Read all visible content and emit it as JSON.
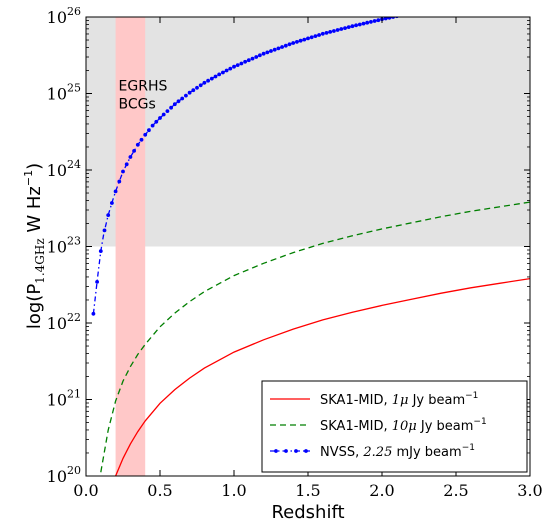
{
  "chart_data": {
    "type": "line",
    "x_label": "Redshift",
    "y_label": {
      "prefix": "log(P",
      "subscript": "1.4GHz",
      "unit": " W Hz",
      "unit_exponent": "−1",
      "suffix": ")"
    },
    "xlim": [
      0.0,
      3.0
    ],
    "ylim_log10": [
      20,
      26
    ],
    "y_scale": "log",
    "x_ticks": [
      {
        "value": 0.0,
        "label": "0.0"
      },
      {
        "value": 0.5,
        "label": "0.5"
      },
      {
        "value": 1.0,
        "label": "1.0"
      },
      {
        "value": 1.5,
        "label": "1.5"
      },
      {
        "value": 2.0,
        "label": "2.0"
      },
      {
        "value": 2.5,
        "label": "2.5"
      },
      {
        "value": 3.0,
        "label": "3.0"
      }
    ],
    "y_ticks": [
      {
        "exp": 20,
        "base": "10",
        "power": "20"
      },
      {
        "exp": 21,
        "base": "10",
        "power": "21"
      },
      {
        "exp": 22,
        "base": "10",
        "power": "22"
      },
      {
        "exp": 23,
        "base": "10",
        "power": "23"
      },
      {
        "exp": 24,
        "base": "10",
        "power": "24"
      },
      {
        "exp": 25,
        "base": "10",
        "power": "25"
      },
      {
        "exp": 26,
        "base": "10",
        "power": "26"
      }
    ],
    "shaded_regions": [
      {
        "kind": "horizontal",
        "y_log10_min": 23,
        "y_log10_max": 26,
        "color": "#e3e3e3"
      },
      {
        "kind": "vertical",
        "x_min": 0.2,
        "x_max": 0.4,
        "color": "#ffc8c8"
      }
    ],
    "annotation": {
      "lines": [
        "EGRHS",
        "BCGs"
      ],
      "x": 0.22,
      "y_log10": 25.0
    },
    "series": [
      {
        "name_prefix": "SKA1-MID, ",
        "name_math": "1μ",
        "name_suffix": " Jy beam",
        "name_exponent": "−1",
        "color": "#ff0000",
        "style": "solid",
        "x": [
          0.2,
          0.25,
          0.3,
          0.35,
          0.4,
          0.5,
          0.6,
          0.7,
          0.8,
          1.0,
          1.2,
          1.4,
          1.6,
          1.8,
          2.0,
          2.2,
          2.4,
          2.6,
          2.8,
          3.0
        ],
        "y_log10": [
          20.0,
          20.23,
          20.42,
          20.58,
          20.72,
          20.95,
          21.13,
          21.28,
          21.41,
          21.62,
          21.78,
          21.92,
          22.04,
          22.14,
          22.23,
          22.31,
          22.39,
          22.46,
          22.52,
          22.58
        ]
      },
      {
        "name_prefix": "SKA1-MID, ",
        "name_math": "10μ",
        "name_suffix": " Jy beam",
        "name_exponent": "−1",
        "color": "#007f00",
        "style": "dashed",
        "x": [
          0.1,
          0.15,
          0.2,
          0.25,
          0.3,
          0.35,
          0.4,
          0.5,
          0.6,
          0.7,
          0.8,
          1.0,
          1.2,
          1.4,
          1.6,
          1.8,
          2.0,
          2.2,
          2.4,
          2.6,
          2.8,
          3.0
        ],
        "y_log10": [
          20.05,
          20.6,
          20.98,
          21.24,
          21.43,
          21.59,
          21.72,
          21.95,
          22.13,
          22.28,
          22.41,
          22.62,
          22.78,
          22.92,
          23.04,
          23.14,
          23.23,
          23.31,
          23.39,
          23.46,
          23.52,
          23.58
        ]
      },
      {
        "name_prefix": "NVSS, ",
        "name_math": "2.25",
        "name_suffix": " mJy beam",
        "name_exponent": "−1",
        "color": "#0000ff",
        "style": "dash-dot-markers",
        "x": [
          0.05,
          0.08,
          0.1,
          0.12,
          0.15,
          0.18,
          0.2,
          0.25,
          0.3,
          0.35,
          0.4,
          0.45,
          0.5,
          0.6,
          0.7,
          0.8,
          0.9,
          1.0,
          1.2,
          1.4,
          1.6,
          1.8,
          2.0,
          2.2,
          2.4,
          2.6,
          2.7
        ],
        "y_log10": [
          22.12,
          22.62,
          22.94,
          23.17,
          23.41,
          23.6,
          23.72,
          23.98,
          24.17,
          24.33,
          24.46,
          24.58,
          24.68,
          24.86,
          25.01,
          25.14,
          25.25,
          25.35,
          25.52,
          25.66,
          25.78,
          25.88,
          25.97,
          26.05,
          26.12,
          26.19,
          26.22
        ]
      }
    ],
    "legend": {
      "placement": "bottom-right"
    }
  }
}
